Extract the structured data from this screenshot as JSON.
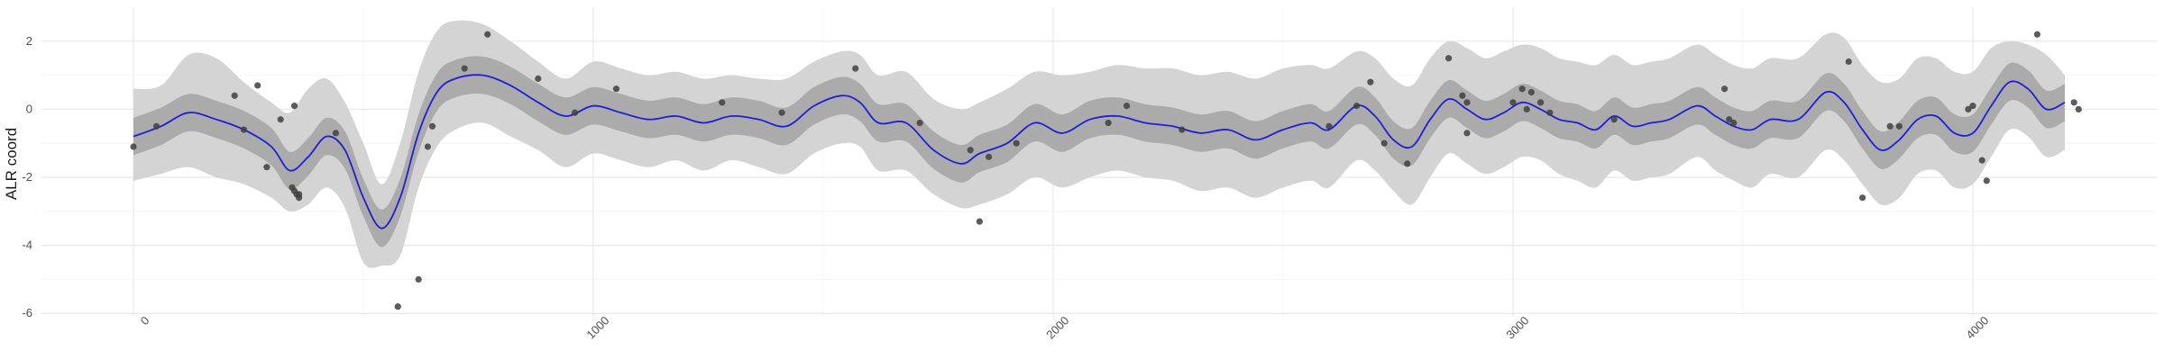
{
  "chart_data": {
    "type": "line",
    "title": "",
    "xlabel": "",
    "ylabel": "ALR coord",
    "xlim": [
      -200,
      4400
    ],
    "ylim": [
      -6.1,
      3.0
    ],
    "x_ticks": [
      0,
      1000,
      2000,
      3000,
      4000
    ],
    "x_tick_labels": [
      "0",
      "1000",
      "2000",
      "3000",
      "4000"
    ],
    "y_ticks": [
      -6,
      -4,
      -2,
      0,
      2
    ],
    "y_tick_labels": [
      "-6",
      "-4",
      "-2",
      "0",
      "2"
    ],
    "grid": true,
    "colors": {
      "mean_line": "#1f1fd6",
      "outer_band": "#d4d4d4",
      "inner_band": "#ababab",
      "points": "#3f3f3f",
      "grid_major": "#e8e8e8",
      "grid_minor": "#f4f4f4"
    },
    "mean_curve": {
      "x": [
        0,
        60,
        120,
        180,
        240,
        300,
        340,
        380,
        420,
        460,
        500,
        540,
        580,
        620,
        660,
        700,
        760,
        820,
        880,
        940,
        1000,
        1060,
        1120,
        1180,
        1240,
        1300,
        1360,
        1420,
        1480,
        1540,
        1580,
        1620,
        1680,
        1740,
        1800,
        1840,
        1900,
        1960,
        2020,
        2080,
        2140,
        2200,
        2260,
        2320,
        2380,
        2440,
        2500,
        2560,
        2600,
        2660,
        2700,
        2740,
        2780,
        2820,
        2860,
        2900,
        2940,
        2980,
        3020,
        3060,
        3100,
        3140,
        3180,
        3220,
        3260,
        3300,
        3340,
        3400,
        3440,
        3480,
        3520,
        3560,
        3620,
        3680,
        3720,
        3760,
        3800,
        3840,
        3880,
        3920,
        3960,
        4000,
        4040,
        4080,
        4120,
        4160,
        4200
      ],
      "y": [
        -0.8,
        -0.5,
        -0.1,
        -0.3,
        -0.6,
        -1.1,
        -1.8,
        -1.4,
        -0.8,
        -1.2,
        -2.6,
        -3.5,
        -2.6,
        -0.7,
        0.5,
        0.9,
        1.0,
        0.7,
        0.2,
        -0.2,
        0.1,
        -0.1,
        -0.3,
        -0.2,
        -0.4,
        -0.2,
        -0.3,
        -0.5,
        0.1,
        0.4,
        0.2,
        -0.4,
        -0.4,
        -1.2,
        -1.6,
        -1.3,
        -1.0,
        -0.4,
        -0.7,
        -0.3,
        -0.2,
        -0.4,
        -0.5,
        -0.7,
        -0.6,
        -0.9,
        -0.6,
        -0.4,
        -0.6,
        0.1,
        -0.2,
        -0.9,
        -1.1,
        -0.3,
        0.3,
        0.0,
        -0.3,
        -0.1,
        0.2,
        0.0,
        -0.3,
        -0.4,
        -0.6,
        -0.2,
        -0.5,
        -0.4,
        -0.3,
        0.1,
        -0.2,
        -0.5,
        -0.6,
        -0.3,
        -0.3,
        0.5,
        0.2,
        -0.6,
        -1.2,
        -0.9,
        -0.3,
        -0.2,
        -0.7,
        -0.7,
        0.1,
        0.8,
        0.6,
        0.0,
        0.2
      ]
    },
    "inner_band_halfwidth": 0.55,
    "outer_band": {
      "upper": [
        0.6,
        0.7,
        1.6,
        1.5,
        0.8,
        0.2,
        -0.1,
        0.6,
        0.9,
        0.2,
        -1.0,
        -2.2,
        -1.0,
        1.1,
        2.3,
        2.6,
        2.5,
        2.0,
        1.4,
        0.9,
        1.4,
        1.2,
        1.0,
        1.1,
        0.9,
        1.0,
        0.9,
        0.9,
        1.4,
        1.7,
        1.6,
        1.0,
        1.1,
        0.3,
        0.0,
        0.2,
        0.6,
        1.1,
        1.0,
        1.1,
        1.3,
        1.2,
        1.2,
        1.0,
        1.1,
        0.9,
        1.2,
        1.3,
        1.2,
        1.7,
        1.5,
        0.9,
        0.7,
        1.5,
        2.0,
        1.8,
        1.5,
        1.7,
        1.9,
        1.8,
        1.5,
        1.4,
        1.3,
        1.6,
        1.3,
        1.4,
        1.5,
        1.9,
        1.6,
        1.3,
        1.2,
        1.5,
        1.5,
        2.2,
        2.1,
        1.3,
        0.8,
        0.9,
        1.5,
        1.5,
        1.1,
        1.1,
        1.8,
        2.0,
        1.9,
        1.6,
        1.0
      ],
      "lower": [
        -2.1,
        -1.9,
        -1.7,
        -2.0,
        -2.2,
        -2.6,
        -3.0,
        -2.8,
        -2.3,
        -2.9,
        -4.5,
        -4.6,
        -4.3,
        -2.3,
        -1.1,
        -0.6,
        -0.4,
        -0.8,
        -1.2,
        -1.7,
        -1.3,
        -1.5,
        -1.7,
        -1.5,
        -1.8,
        -1.5,
        -1.7,
        -1.9,
        -1.3,
        -1.0,
        -1.1,
        -1.8,
        -1.8,
        -2.5,
        -2.9,
        -2.8,
        -2.5,
        -2.0,
        -2.3,
        -2.0,
        -1.8,
        -2.0,
        -2.1,
        -2.4,
        -2.3,
        -2.6,
        -2.3,
        -2.1,
        -2.3,
        -1.5,
        -1.8,
        -2.4,
        -2.8,
        -2.0,
        -1.3,
        -1.6,
        -1.9,
        -1.7,
        -1.4,
        -1.5,
        -1.9,
        -2.1,
        -2.3,
        -1.8,
        -2.1,
        -2.0,
        -1.9,
        -1.4,
        -1.8,
        -2.1,
        -2.3,
        -1.9,
        -2.0,
        -1.2,
        -1.5,
        -2.2,
        -2.8,
        -2.6,
        -1.9,
        -1.8,
        -2.3,
        -2.2,
        -1.4,
        -0.6,
        -0.8,
        -1.4,
        -1.2
      ]
    },
    "points": {
      "x": [
        0,
        50,
        220,
        270,
        240,
        290,
        320,
        350,
        345,
        350,
        355,
        360,
        360,
        440,
        575,
        620,
        640,
        650,
        720,
        770,
        880,
        960,
        1050,
        1280,
        1410,
        1570,
        1710,
        1820,
        1840,
        1860,
        1920,
        2120,
        2160,
        2280,
        2600,
        2660,
        2690,
        2720,
        2770,
        2860,
        2890,
        2900,
        2900,
        3000,
        3020,
        3030,
        3040,
        3060,
        3080,
        3220,
        3460,
        3470,
        3480,
        3730,
        3760,
        3820,
        3840,
        3990,
        4000,
        4020,
        4030,
        4140,
        4220,
        4230
      ],
      "y": [
        -1.1,
        -0.5,
        0.4,
        0.7,
        -0.6,
        -1.7,
        -0.3,
        0.1,
        -2.3,
        -2.4,
        -2.5,
        -2.5,
        -2.6,
        -0.7,
        -5.8,
        -5.0,
        -1.1,
        -0.5,
        1.2,
        2.2,
        0.9,
        -0.1,
        0.6,
        0.2,
        -0.1,
        1.2,
        -0.4,
        -1.2,
        -3.3,
        -1.4,
        -1.0,
        -0.4,
        0.1,
        -0.6,
        -0.5,
        0.1,
        0.8,
        -1.0,
        -1.6,
        1.5,
        0.4,
        0.2,
        -0.7,
        0.2,
        0.6,
        0.0,
        0.5,
        0.2,
        -0.1,
        -0.3,
        0.6,
        -0.3,
        -0.4,
        1.4,
        -2.6,
        -0.5,
        -0.5,
        0.0,
        0.1,
        -1.5,
        -2.1,
        2.2,
        0.2,
        0.0
      ]
    }
  }
}
